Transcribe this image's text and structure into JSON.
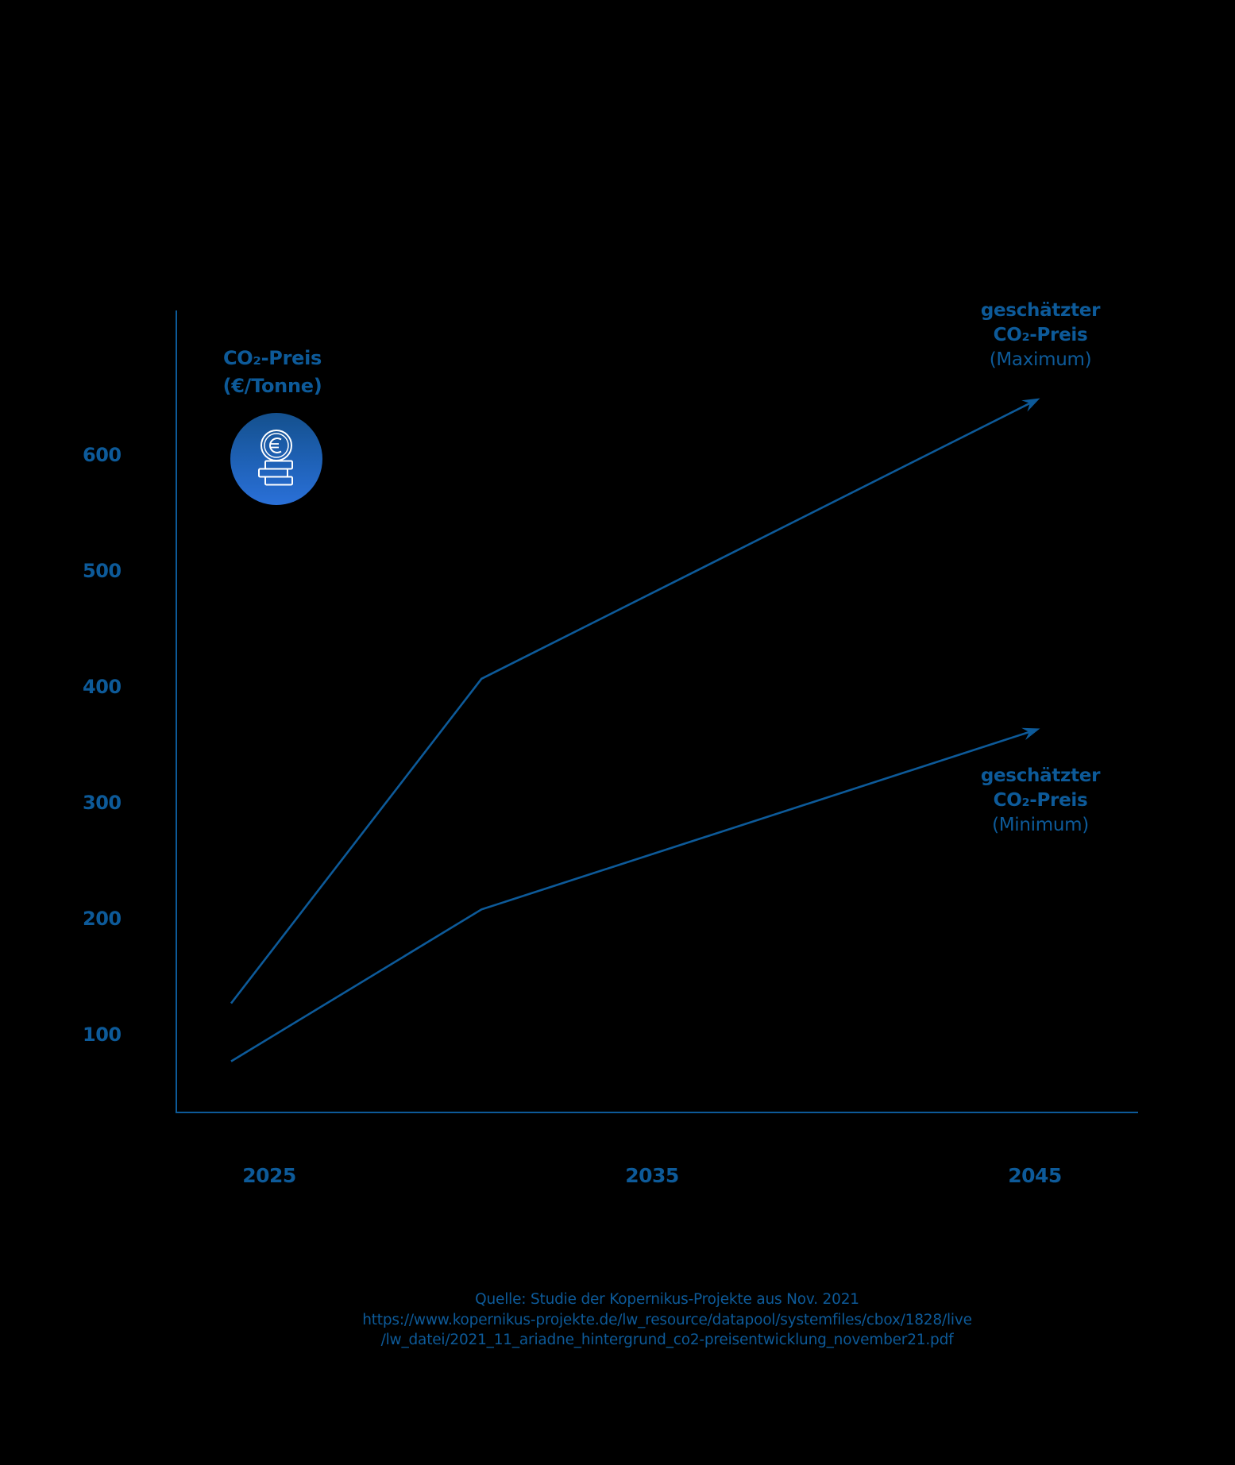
{
  "chart_data": {
    "type": "line",
    "title": "",
    "ylabel": "CO₂-Preis (€/Tonne)",
    "ylabel_lines": [
      "CO₂-Preis",
      "(€/Tonne)"
    ],
    "xlabel": "",
    "y_ticks": [
      "100",
      "200",
      "300",
      "400",
      "500",
      "600"
    ],
    "x_ticks": [
      "2025",
      "2035",
      "2045"
    ],
    "ylim": [
      50,
      700
    ],
    "xlim": [
      2021,
      2047
    ],
    "grid": false,
    "legend": "inline labels at line ends",
    "series": [
      {
        "name": "geschätzter CO₂-Preis (Maximum)",
        "label_lines": [
          "geschätzter",
          "CO₂-Preis",
          "(Maximum)"
        ],
        "x": [
          2024,
          2030.5,
          2045
        ],
        "values": [
          127,
          407,
          649
        ],
        "arrow_at_end": true,
        "color": "#0d5a99"
      },
      {
        "name": "geschätzter CO₂-Preis (Minimum)",
        "label_lines": [
          "geschätzter",
          "CO₂-Preis",
          "(Minimum)"
        ],
        "x": [
          2024,
          2030.5,
          2045
        ],
        "values": [
          77,
          208,
          364
        ],
        "arrow_at_end": true,
        "color": "#0d5a99"
      }
    ],
    "icon": "euro-coin-stack-icon",
    "colors": {
      "text": "#0d5a99",
      "axis": "#0d5a99",
      "line": "#0d5a99",
      "badge_top": "#14508d",
      "badge_bottom": "#2a70d8",
      "background": "#000000"
    }
  },
  "source": {
    "line1": "Quelle: Studie der Kopernikus-Projekte aus Nov. 2021",
    "line2": "https://www.kopernikus-projekte.de/lw_resource/datapool/systemfiles/cbox/1828/live",
    "line3": "/lw_datei/2021_11_ariadne_hintergrund_co2-preisentwicklung_november21.pdf"
  }
}
